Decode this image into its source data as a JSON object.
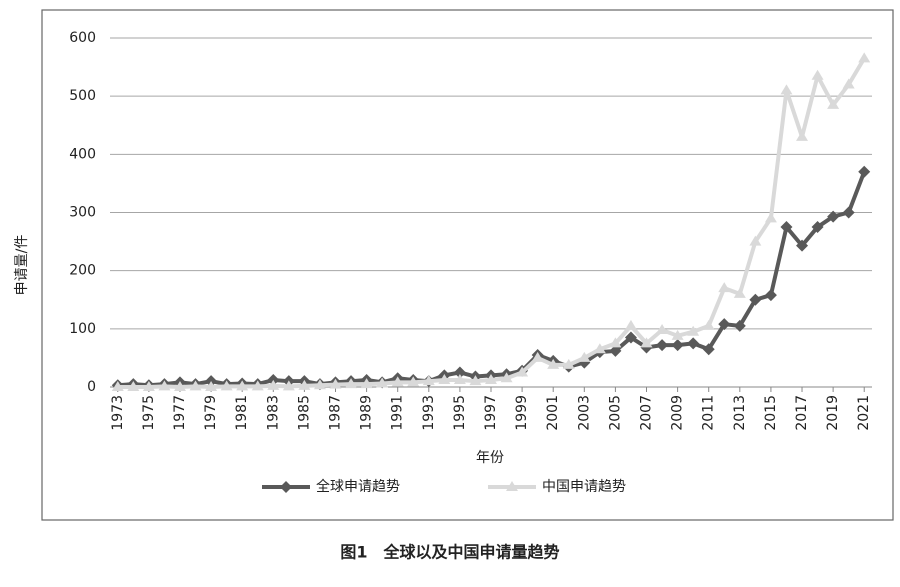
{
  "chart_data": {
    "type": "line",
    "caption": "图1　全球以及中国申请量趋势",
    "ylabel": "申请量/件",
    "xlabel": "年份",
    "categories": [
      "1973",
      null,
      "1975",
      null,
      "1977",
      null,
      "1979",
      null,
      "1981",
      null,
      "1983",
      null,
      "1985",
      null,
      "1987",
      null,
      "1989",
      null,
      "1991",
      null,
      "1993",
      null,
      "1995",
      null,
      "1997",
      null,
      "1999",
      null,
      "2001",
      null,
      "2003",
      null,
      "2005",
      null,
      "2007",
      null,
      "2009",
      null,
      "2011",
      null,
      "2013",
      null,
      "2015",
      null,
      "2017",
      null,
      "2019",
      null,
      "2021"
    ],
    "series": [
      {
        "name": "全球申请趋势",
        "color": "#595959",
        "marker": "diamond",
        "values": [
          3,
          5,
          3,
          5,
          8,
          5,
          10,
          5,
          6,
          5,
          12,
          10,
          10,
          5,
          8,
          10,
          12,
          8,
          15,
          12,
          10,
          20,
          25,
          18,
          20,
          22,
          28,
          55,
          45,
          35,
          42,
          60,
          62,
          85,
          68,
          72,
          72,
          75,
          65,
          108,
          105,
          150,
          158,
          275,
          243,
          275,
          293,
          300,
          370
        ]
      },
      {
        "name": "中国申请趋势",
        "color": "#d9d9d9",
        "marker": "triangle",
        "values": [
          0,
          0,
          0,
          1,
          0,
          1,
          0,
          1,
          1,
          1,
          2,
          1,
          2,
          3,
          4,
          5,
          5,
          6,
          8,
          8,
          10,
          12,
          12,
          10,
          12,
          15,
          25,
          50,
          38,
          38,
          50,
          65,
          75,
          105,
          75,
          98,
          88,
          95,
          105,
          170,
          160,
          250,
          290,
          510,
          430,
          535,
          485,
          520,
          565
        ]
      }
    ],
    "ylim": [
      0,
      600
    ],
    "yticks": [
      0,
      100,
      200,
      300,
      400,
      500,
      600
    ],
    "grid": true,
    "legend": "bottom"
  }
}
